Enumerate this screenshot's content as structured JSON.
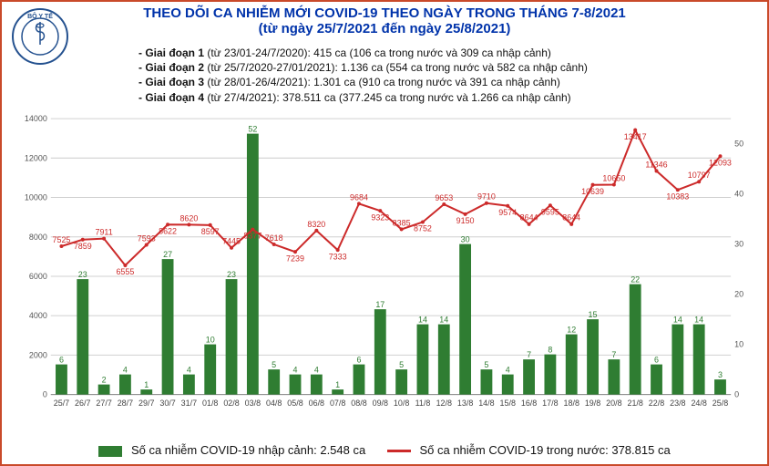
{
  "title": {
    "line1": "THEO DÕI CA NHIỄM MỚI COVID-19 THEO NGÀY TRONG THÁNG 7-8/2021",
    "line2": "(từ ngày 25/7/2021 đến ngày 25/8/2021)",
    "color": "#0033aa",
    "fontsize": 15
  },
  "logo": {
    "outer_text_top": "BỘ Y TẾ",
    "color": "#24518f"
  },
  "phases": [
    {
      "label": "- Giai đoạn 1",
      "range": "(từ 23/01-24/7/2020)",
      "total": "415 ca",
      "detail": "(106 ca trong nước và 309 ca nhập cảnh)"
    },
    {
      "label": "- Giai đoạn 2",
      "range": "(từ 25/7/2020-27/01/2021)",
      "total": "1.136 ca",
      "detail": "(554 ca trong nước và 582 ca nhập cảnh)"
    },
    {
      "label": "- Giai đoạn 3",
      "range": "(từ 28/01-26/4/2021)",
      "total": "1.301 ca",
      "detail": "(910 ca trong nước và 391 ca nhập cảnh)"
    },
    {
      "label": "- Giai đoạn 4",
      "range": "(từ 27/4/2021)",
      "total": "378.511 ca",
      "detail": "(377.245 ca trong nước và 1.266 ca nhập cảnh)"
    }
  ],
  "legend": {
    "bar": "Số ca nhiễm COVID-19 nhập cảnh: 2.548 ca",
    "line": "Số ca nhiễm COVID-19 trong nước: 378.815 ca"
  },
  "chart": {
    "type": "bar+line",
    "background_color": "#ffffff",
    "grid_color": "#d0d0d0",
    "axis_color": "#888888",
    "bar_color": "#2f7d32",
    "line_color": "#cc2a2a",
    "bar_value_label_fontsize": 9,
    "line_value_label_fontsize": 9,
    "axis_label_fontsize": 9,
    "categories": [
      "25/7",
      "26/7",
      "27/7",
      "28/7",
      "29/7",
      "30/7",
      "31/7",
      "01/8",
      "02/8",
      "03/8",
      "04/8",
      "05/8",
      "06/8",
      "07/8",
      "08/8",
      "09/8",
      "10/8",
      "11/8",
      "12/8",
      "13/8",
      "14/8",
      "15/8",
      "16/8",
      "17/8",
      "18/8",
      "19/8",
      "20/8",
      "21/8",
      "22/8",
      "23/8",
      "24/8",
      "25/8"
    ],
    "bars": {
      "values": [
        6,
        23,
        2,
        4,
        1,
        27,
        4,
        10,
        23,
        52,
        5,
        4,
        4,
        1,
        6,
        17,
        5,
        14,
        14,
        30,
        5,
        4,
        7,
        8,
        12,
        15,
        7,
        22,
        6,
        14,
        14,
        3
      ],
      "y_axis": "right",
      "ylim": [
        0,
        55
      ],
      "ytick_step": 10
    },
    "line": {
      "values": [
        7525,
        7859,
        7911,
        6555,
        7593,
        8622,
        8620,
        8597,
        7445,
        8377,
        7618,
        7239,
        8320,
        7333,
        9684,
        9323,
        8385,
        8752,
        9653,
        9150,
        9710,
        9574,
        8644,
        9595,
        8644,
        10639,
        10650,
        13417,
        11346,
        10383,
        10797,
        12093
      ],
      "y_axis": "left",
      "ylim": [
        0,
        14000
      ],
      "ytick_step": 2000
    }
  }
}
